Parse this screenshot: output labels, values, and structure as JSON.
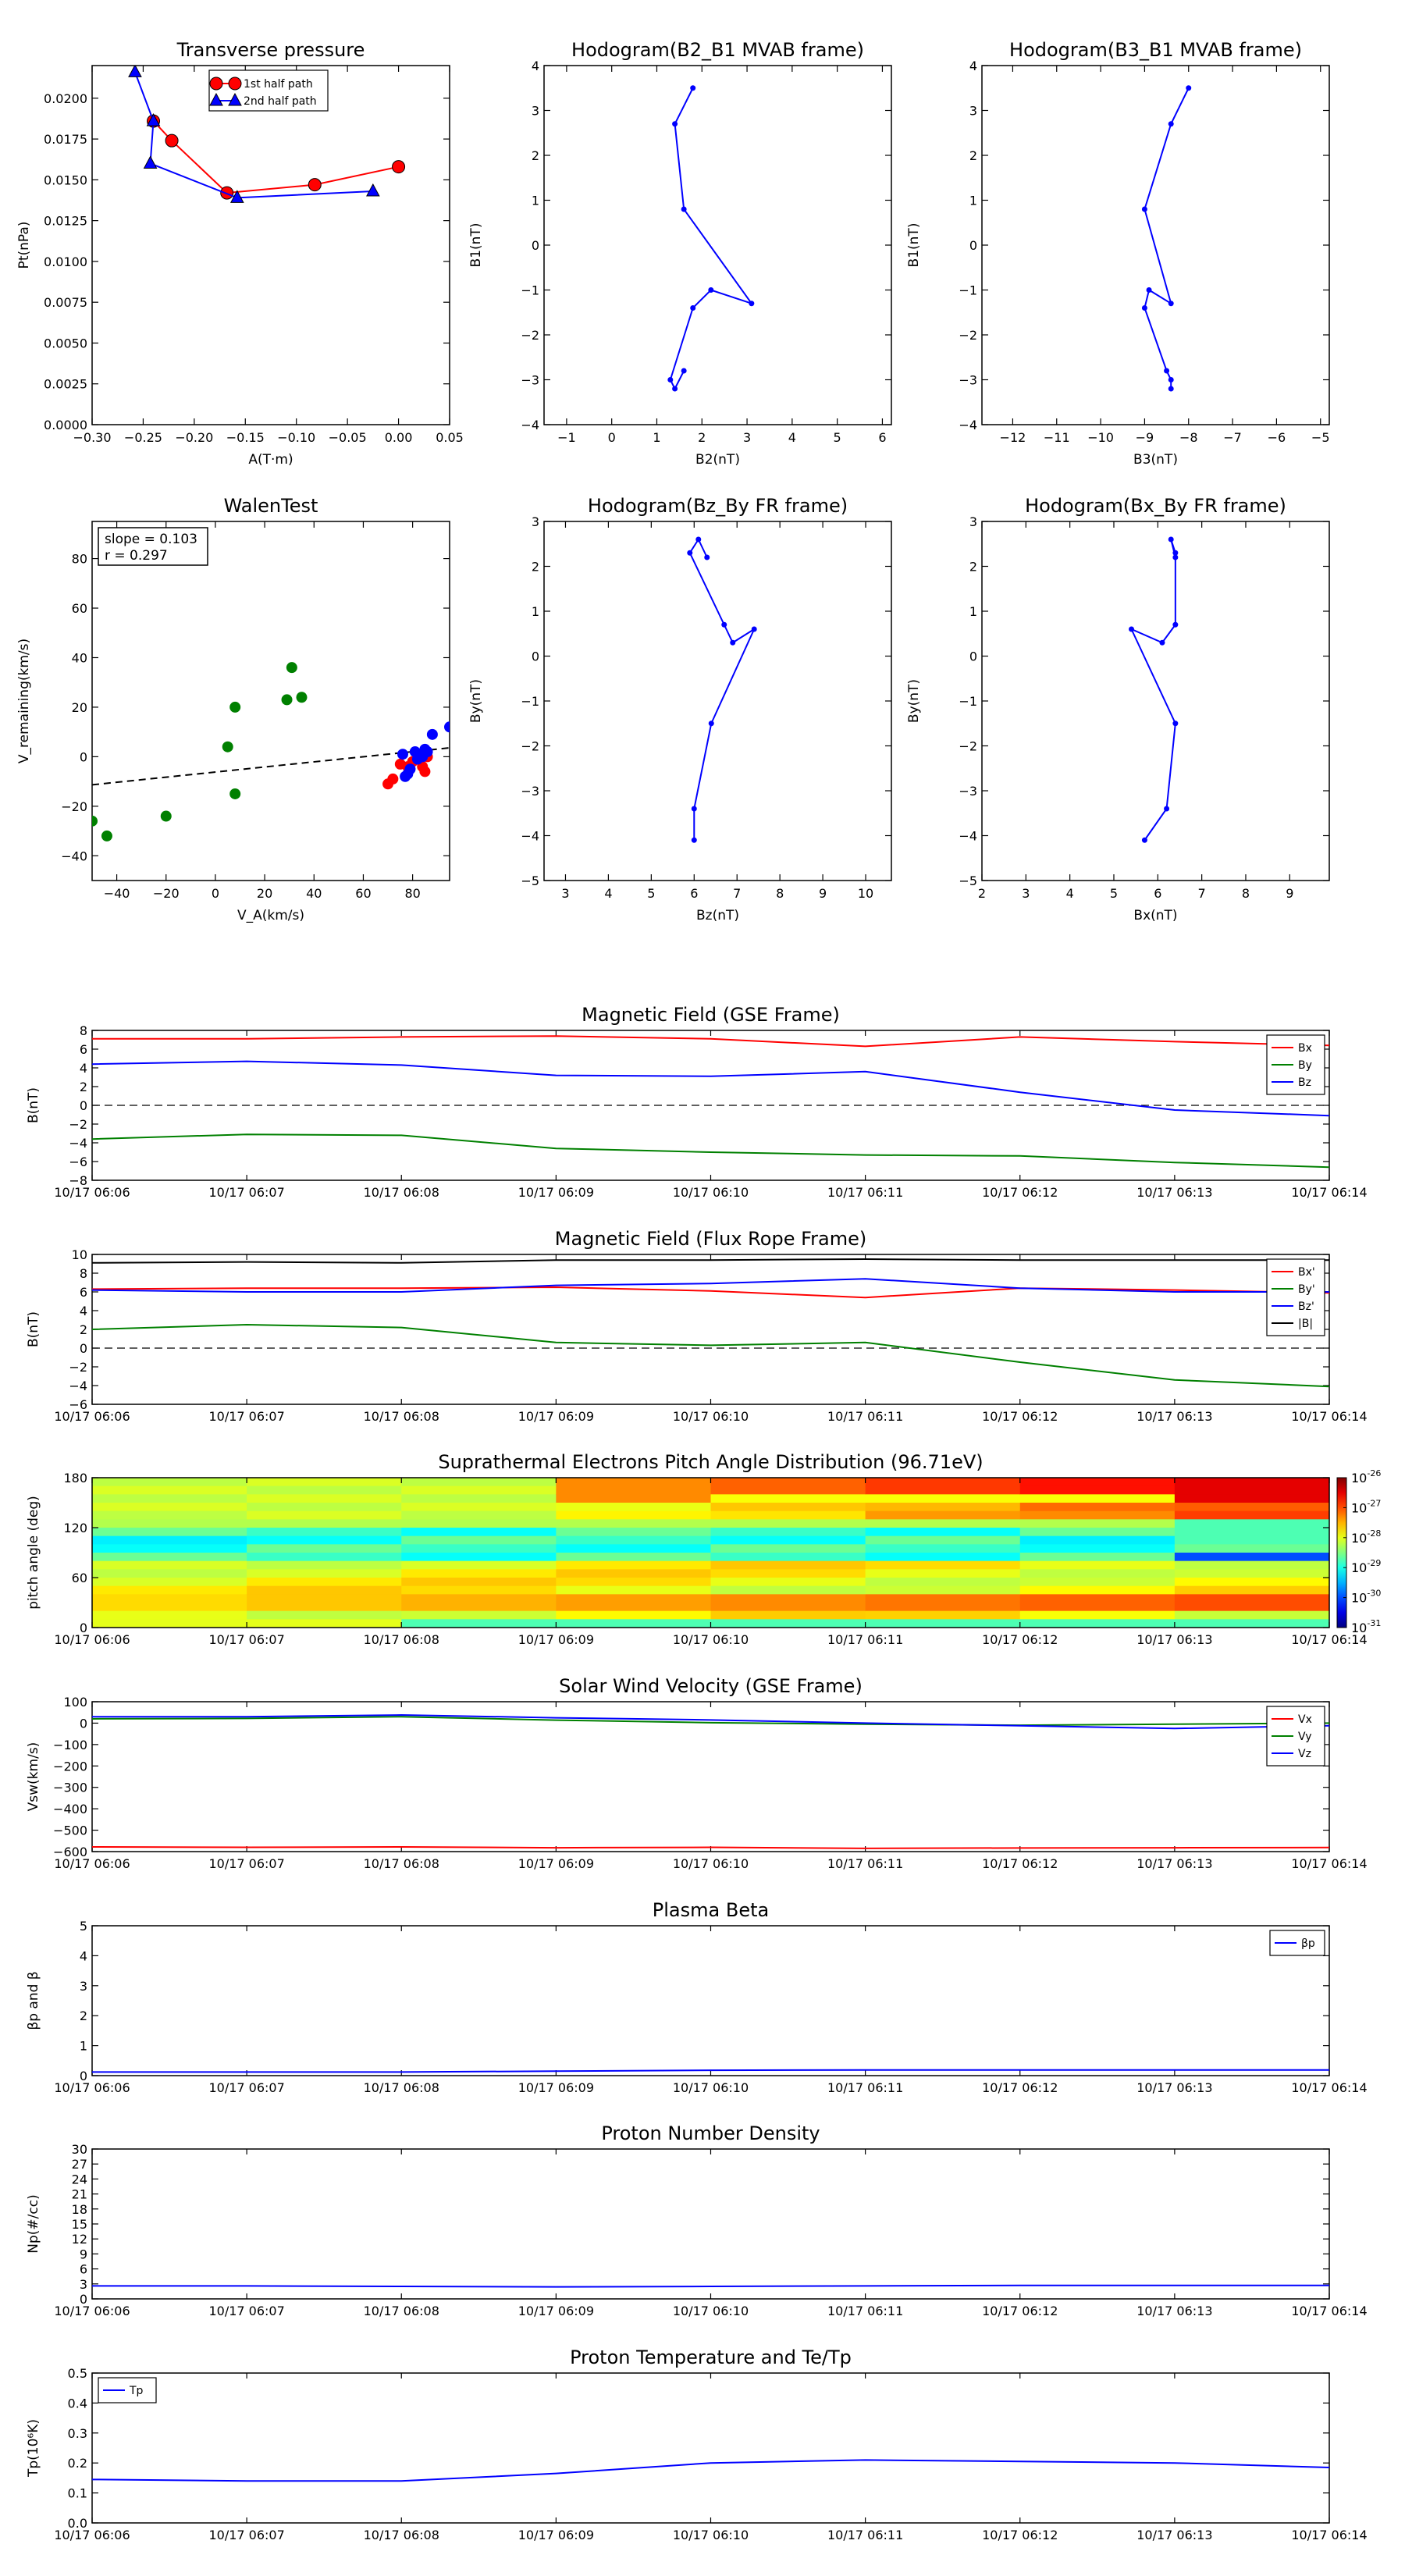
{
  "colors": {
    "red": "#ff0000",
    "green": "#008000",
    "blue": "#0000ff",
    "black": "#000000"
  },
  "chart_data": [
    {
      "id": "tp",
      "type": "line",
      "title": "Transverse pressure",
      "xlabel": "A(T·m)",
      "ylabel": "Pt(nPa)",
      "xlim": [
        -0.3,
        0.05
      ],
      "ylim": [
        0,
        0.022
      ],
      "xticks": [
        -0.3,
        -0.25,
        -0.2,
        -0.15,
        -0.1,
        -0.05,
        0.0,
        0.05
      ],
      "xtick_labels": [
        "−0.30",
        "−0.25",
        "−0.20",
        "−0.15",
        "−0.10",
        "−0.05",
        "0.00",
        "0.05"
      ],
      "yticks": [
        0,
        0.0025,
        0.005,
        0.0075,
        0.01,
        0.0125,
        0.015,
        0.0175,
        0.02
      ],
      "ytick_labels": [
        "0.0000",
        "0.0025",
        "0.0050",
        "0.0075",
        "0.0100",
        "0.0125",
        "0.0150",
        "0.0175",
        "0.0200"
      ],
      "legend": "upper-center",
      "series": [
        {
          "name": "1st half path",
          "color": "red",
          "marker": "circle",
          "x": [
            0.0,
            -0.082,
            -0.168,
            -0.222,
            -0.24
          ],
          "y": [
            0.0158,
            0.0147,
            0.0142,
            0.0174,
            0.0186
          ]
        },
        {
          "name": "2nd half path",
          "color": "blue",
          "marker": "triangle",
          "x": [
            -0.258,
            -0.24,
            -0.243,
            -0.158,
            -0.025
          ],
          "y": [
            0.0216,
            0.0186,
            0.016,
            0.0139,
            0.0143
          ]
        }
      ]
    },
    {
      "id": "h1",
      "type": "line",
      "title": "Hodogram(B2_B1 MVAB frame)",
      "xlabel": "B2(nT)",
      "ylabel": "B1(nT)",
      "xlim": [
        -1.5,
        6.2
      ],
      "ylim": [
        -4,
        4
      ],
      "xticks": [
        -1,
        0,
        1,
        2,
        3,
        4,
        5,
        6
      ],
      "xtick_labels": [
        "−1",
        "0",
        "1",
        "2",
        "3",
        "4",
        "5",
        "6"
      ],
      "yticks": [
        -4,
        -3,
        -2,
        -1,
        0,
        1,
        2,
        3,
        4
      ],
      "ytick_labels": [
        "−4",
        "−3",
        "−2",
        "−1",
        "0",
        "1",
        "2",
        "3",
        "4"
      ],
      "series": [
        {
          "name": "hodogram",
          "color": "blue",
          "marker": "dot",
          "x": [
            1.8,
            1.4,
            1.6,
            3.1,
            2.2,
            1.8,
            1.3,
            1.4,
            1.6
          ],
          "y": [
            3.5,
            2.7,
            0.8,
            -1.3,
            -1.0,
            -1.4,
            -3.0,
            -3.2,
            -2.8
          ]
        }
      ]
    },
    {
      "id": "h2",
      "type": "line",
      "title": "Hodogram(B3_B1 MVAB frame)",
      "xlabel": "B3(nT)",
      "ylabel": "B1(nT)",
      "xlim": [
        -12.7,
        -4.8
      ],
      "ylim": [
        -4,
        4
      ],
      "xticks": [
        -12,
        -11,
        -10,
        -9,
        -8,
        -7,
        -6,
        -5
      ],
      "xtick_labels": [
        "−12",
        "−11",
        "−10",
        "−9",
        "−8",
        "−7",
        "−6",
        "−5"
      ],
      "yticks": [
        -4,
        -3,
        -2,
        -1,
        0,
        1,
        2,
        3,
        4
      ],
      "ytick_labels": [
        "−4",
        "−3",
        "−2",
        "−1",
        "0",
        "1",
        "2",
        "3",
        "4"
      ],
      "series": [
        {
          "name": "hodogram",
          "color": "blue",
          "marker": "dot",
          "x": [
            -8.0,
            -8.4,
            -9.0,
            -8.4,
            -8.9,
            -9.0,
            -8.5,
            -8.4,
            -8.4
          ],
          "y": [
            3.5,
            2.7,
            0.8,
            -1.3,
            -1.0,
            -1.4,
            -2.8,
            -3.0,
            -3.2
          ]
        }
      ]
    },
    {
      "id": "walen",
      "type": "scatter",
      "title": "WalenTest",
      "xlabel": "V_A(km/s)",
      "ylabel": "V_remaining(km/s)",
      "xlim": [
        -50,
        95
      ],
      "ylim": [
        -50,
        95
      ],
      "xticks": [
        -40,
        -20,
        0,
        20,
        40,
        60,
        80
      ],
      "xtick_labels": [
        "−40",
        "−20",
        "0",
        "20",
        "40",
        "60",
        "80"
      ],
      "yticks": [
        -40,
        -20,
        0,
        20,
        40,
        60,
        80
      ],
      "ytick_labels": [
        "−40",
        "−20",
        "0",
        "20",
        "40",
        "60",
        "80"
      ],
      "annotation": {
        "slope": "slope = 0.103",
        "r": "r = 0.297"
      },
      "fit": {
        "slope": 0.103,
        "intercept": -6.2
      },
      "series": [
        {
          "name": "green",
          "color": "green",
          "x": [
            -50,
            -44,
            -20,
            5,
            8,
            8,
            29,
            31,
            35
          ],
          "y": [
            -26,
            -32,
            -24,
            4,
            20,
            -15,
            23,
            36,
            24
          ]
        },
        {
          "name": "red",
          "color": "red",
          "x": [
            70,
            72,
            75,
            78,
            80,
            83,
            84,
            85,
            86
          ],
          "y": [
            -11,
            -9,
            -3,
            -4,
            -2,
            -1,
            -4,
            -6,
            0
          ]
        },
        {
          "name": "blue",
          "color": "blue",
          "x": [
            76,
            77,
            78,
            79,
            81,
            82,
            84,
            85,
            86,
            88,
            95
          ],
          "y": [
            1,
            -8,
            -7,
            -5,
            2,
            -1,
            0,
            3,
            2,
            9,
            12
          ]
        }
      ]
    },
    {
      "id": "h3",
      "type": "line",
      "title": "Hodogram(Bz_By FR frame)",
      "xlabel": "Bz(nT)",
      "ylabel": "By(nT)",
      "xlim": [
        2.5,
        10.6
      ],
      "ylim": [
        -5,
        3
      ],
      "xticks": [
        3,
        4,
        5,
        6,
        7,
        8,
        9,
        10
      ],
      "xtick_labels": [
        "3",
        "4",
        "5",
        "6",
        "7",
        "8",
        "9",
        "10"
      ],
      "yticks": [
        -5,
        -4,
        -3,
        -2,
        -1,
        0,
        1,
        2,
        3
      ],
      "ytick_labels": [
        "−5",
        "−4",
        "−3",
        "−2",
        "−1",
        "0",
        "1",
        "2",
        "3"
      ],
      "series": [
        {
          "name": "hodogram",
          "color": "blue",
          "marker": "dot",
          "x": [
            6.3,
            6.1,
            5.9,
            6.7,
            6.9,
            7.4,
            6.4,
            6.0,
            6.0
          ],
          "y": [
            2.2,
            2.6,
            2.3,
            0.7,
            0.3,
            0.6,
            -1.5,
            -3.4,
            -4.1
          ]
        }
      ]
    },
    {
      "id": "h4",
      "type": "line",
      "title": "Hodogram(Bx_By FR frame)",
      "xlabel": "Bx(nT)",
      "ylabel": "By(nT)",
      "xlim": [
        2,
        9.9
      ],
      "ylim": [
        -5,
        3
      ],
      "xticks": [
        2,
        3,
        4,
        5,
        6,
        7,
        8,
        9
      ],
      "xtick_labels": [
        "2",
        "3",
        "4",
        "5",
        "6",
        "7",
        "8",
        "9"
      ],
      "yticks": [
        -5,
        -4,
        -3,
        -2,
        -1,
        0,
        1,
        2,
        3
      ],
      "ytick_labels": [
        "−5",
        "−4",
        "−3",
        "−2",
        "−1",
        "0",
        "1",
        "2",
        "3"
      ],
      "series": [
        {
          "name": "hodogram",
          "color": "blue",
          "marker": "dot",
          "x": [
            6.4,
            6.3,
            6.4,
            6.4,
            6.1,
            5.4,
            6.4,
            6.2,
            5.7
          ],
          "y": [
            2.3,
            2.6,
            2.2,
            0.7,
            0.3,
            0.6,
            -1.5,
            -3.4,
            -4.1
          ]
        }
      ]
    },
    {
      "id": "bgse",
      "type": "line",
      "title": "Magnetic Field (GSE Frame)",
      "ylabel": "B(nT)",
      "ylim": [
        -8,
        8
      ],
      "yticks": [
        -8,
        -6,
        -4,
        -2,
        0,
        2,
        4,
        6,
        8
      ],
      "ytick_labels": [
        "−8",
        "−6",
        "−4",
        "−2",
        "0",
        "2",
        "4",
        "6",
        "8"
      ],
      "zero_line": true,
      "legend": "upper-right",
      "series": [
        {
          "name": "Bx",
          "color": "red",
          "values": [
            7.1,
            7.1,
            7.3,
            7.4,
            7.1,
            6.3,
            7.3,
            6.8,
            6.4
          ]
        },
        {
          "name": "By",
          "color": "green",
          "values": [
            -3.6,
            -3.1,
            -3.2,
            -4.6,
            -5.0,
            -5.3,
            -5.4,
            -6.1,
            -6.6
          ]
        },
        {
          "name": "Bz",
          "color": "blue",
          "values": [
            4.4,
            4.7,
            4.3,
            3.2,
            3.1,
            3.6,
            1.4,
            -0.5,
            -1.1
          ]
        }
      ]
    },
    {
      "id": "bfr",
      "type": "line",
      "title": "Magnetic Field (Flux Rope Frame)",
      "ylabel": "B(nT)",
      "ylim": [
        -6,
        10
      ],
      "yticks": [
        -6,
        -4,
        -2,
        0,
        2,
        4,
        6,
        8,
        10
      ],
      "ytick_labels": [
        "−6",
        "−4",
        "−2",
        "0",
        "2",
        "4",
        "6",
        "8",
        "10"
      ],
      "zero_line": true,
      "legend": "upper-right",
      "series": [
        {
          "name": "Bx'",
          "color": "red",
          "values": [
            6.3,
            6.4,
            6.4,
            6.5,
            6.1,
            5.4,
            6.4,
            6.2,
            5.9
          ]
        },
        {
          "name": "By'",
          "color": "green",
          "values": [
            2.0,
            2.5,
            2.2,
            0.6,
            0.3,
            0.6,
            -1.5,
            -3.4,
            -4.1
          ]
        },
        {
          "name": "Bz'",
          "color": "blue",
          "values": [
            6.2,
            6.0,
            6.0,
            6.7,
            6.9,
            7.4,
            6.4,
            6.0,
            6.0
          ]
        },
        {
          "name": "|B|",
          "color": "black",
          "values": [
            9.1,
            9.2,
            9.1,
            9.4,
            9.4,
            9.5,
            9.4,
            9.4,
            9.4
          ]
        }
      ]
    },
    {
      "id": "pad",
      "type": "heatmap",
      "title": "Suprathermal Electrons Pitch Angle Distribution (96.71eV)",
      "ylabel": "pitch angle (deg)",
      "ylim": [
        0,
        180
      ],
      "yticks": [
        0,
        60,
        120,
        180
      ],
      "ytick_labels": [
        "0",
        "60",
        "120",
        "180"
      ],
      "colorbar": {
        "ticks": [
          "10",
          "10",
          "10",
          "10",
          "10",
          "10"
        ],
        "exponents": [
          "-26",
          "-27",
          "-28",
          "-29",
          "-30",
          "-31"
        ]
      },
      "columns": 8,
      "rows": 18
    },
    {
      "id": "vsw",
      "type": "line",
      "title": "Solar Wind Velocity (GSE Frame)",
      "ylabel": "Vsw(km/s)",
      "ylim": [
        -600,
        100
      ],
      "yticks": [
        -600,
        -500,
        -400,
        -300,
        -200,
        -100,
        0,
        100
      ],
      "ytick_labels": [
        "−600",
        "−500",
        "−400",
        "−300",
        "−200",
        "−100",
        "0",
        "100"
      ],
      "legend": "upper-right",
      "series": [
        {
          "name": "Vx",
          "color": "red",
          "values": [
            -578,
            -580,
            -578,
            -582,
            -580,
            -585,
            -583,
            -582,
            -581
          ]
        },
        {
          "name": "Vy",
          "color": "green",
          "values": [
            20,
            22,
            30,
            14,
            2,
            -5,
            -10,
            -5,
            0
          ]
        },
        {
          "name": "Vz",
          "color": "blue",
          "values": [
            30,
            30,
            38,
            25,
            15,
            0,
            -12,
            -25,
            -12
          ]
        }
      ]
    },
    {
      "id": "beta",
      "type": "line",
      "title": "Plasma Beta",
      "ylabel": "βp and β",
      "ylim": [
        0,
        5
      ],
      "yticks": [
        0,
        1,
        2,
        3,
        4,
        5
      ],
      "ytick_labels": [
        "0",
        "1",
        "2",
        "3",
        "4",
        "5"
      ],
      "legend": "upper-right",
      "series": [
        {
          "name": "βp",
          "color": "blue",
          "values": [
            0.12,
            0.12,
            0.12,
            0.15,
            0.18,
            0.19,
            0.19,
            0.19,
            0.19
          ]
        }
      ]
    },
    {
      "id": "np",
      "type": "line",
      "title": "Proton Number Density",
      "ylabel": "Np(#/cc)",
      "ylim": [
        0,
        30
      ],
      "yticks": [
        0,
        3,
        6,
        9,
        12,
        15,
        18,
        21,
        24,
        27,
        30
      ],
      "ytick_labels": [
        "0",
        "3",
        "6",
        "9",
        "12",
        "15",
        "18",
        "21",
        "24",
        "27",
        "30"
      ],
      "series": [
        {
          "name": "Np",
          "color": "blue",
          "values": [
            2.6,
            2.6,
            2.5,
            2.4,
            2.5,
            2.6,
            2.7,
            2.7,
            2.7
          ]
        }
      ]
    },
    {
      "id": "tpp",
      "type": "line",
      "title": "Proton Temperature and Te/Tp",
      "ylabel": "Tp(10⁶K)",
      "ylim": [
        0,
        0.5
      ],
      "yticks": [
        0,
        0.1,
        0.2,
        0.3,
        0.4,
        0.5
      ],
      "ytick_labels": [
        "0.0",
        "0.1",
        "0.2",
        "0.3",
        "0.4",
        "0.5"
      ],
      "legend": "upper-left",
      "series": [
        {
          "name": "Tp",
          "color": "blue",
          "values": [
            0.145,
            0.14,
            0.14,
            0.165,
            0.2,
            0.21,
            0.205,
            0.2,
            0.185
          ]
        }
      ]
    }
  ],
  "time_ticks": [
    "10/17 06:06",
    "10/17 06:07",
    "10/17 06:08",
    "10/17 06:09",
    "10/17 06:10",
    "10/17 06:11",
    "10/17 06:12",
    "10/17 06:13",
    "10/17 06:14"
  ]
}
